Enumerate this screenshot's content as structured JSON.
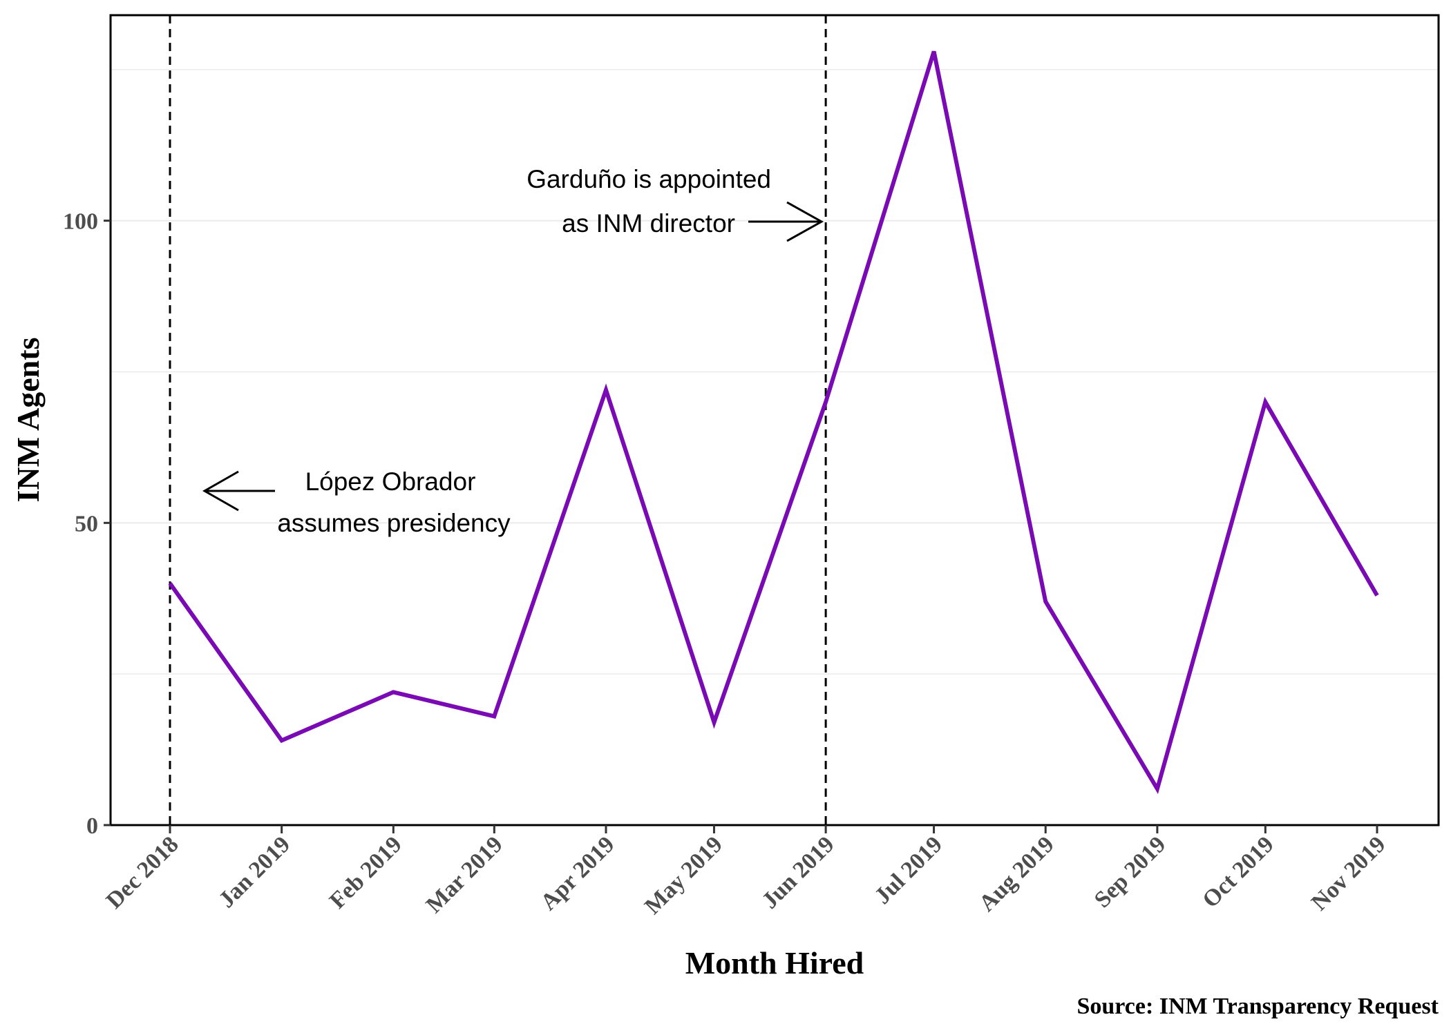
{
  "chart_data": {
    "type": "line",
    "categories": [
      "Dec 2018",
      "Jan 2019",
      "Feb 2019",
      "Mar 2019",
      "Apr 2019",
      "May 2019",
      "Jun 2019",
      "Jul 2019",
      "Aug 2019",
      "Sep 2019",
      "Oct 2019",
      "Nov 2019"
    ],
    "x_days": [
      0,
      31,
      62,
      90,
      121,
      151,
      182,
      212,
      243,
      274,
      304,
      335
    ],
    "series": [
      {
        "values": [
          40,
          14,
          22,
          18,
          72,
          17,
          70,
          128,
          37,
          6,
          70,
          38
        ]
      }
    ],
    "xlabel": "Month Hired",
    "ylabel": "INM Agents",
    "ylim": [
      0,
      134
    ],
    "yticks": [
      0,
      50,
      100
    ],
    "y_minor_gridlines": [
      25,
      75,
      125
    ],
    "grid": "horizontal",
    "caption": "Source: INM Transparency Request",
    "colors": {
      "line": "#7a0ab3",
      "vline": "#000000",
      "grid": "#ebebeb"
    },
    "vlines": [
      {
        "category": "Dec 2018",
        "style": "dashed"
      },
      {
        "category": "Jun 2019",
        "style": "dashed"
      }
    ],
    "annotations": [
      {
        "lines": [
          "López Obrador",
          "assumes presidency"
        ],
        "target": "Dec 2018",
        "arrow": "left"
      },
      {
        "lines": [
          "Garduño is appointed",
          "as INM director"
        ],
        "target": "Jun 2019",
        "arrow": "right"
      }
    ]
  }
}
